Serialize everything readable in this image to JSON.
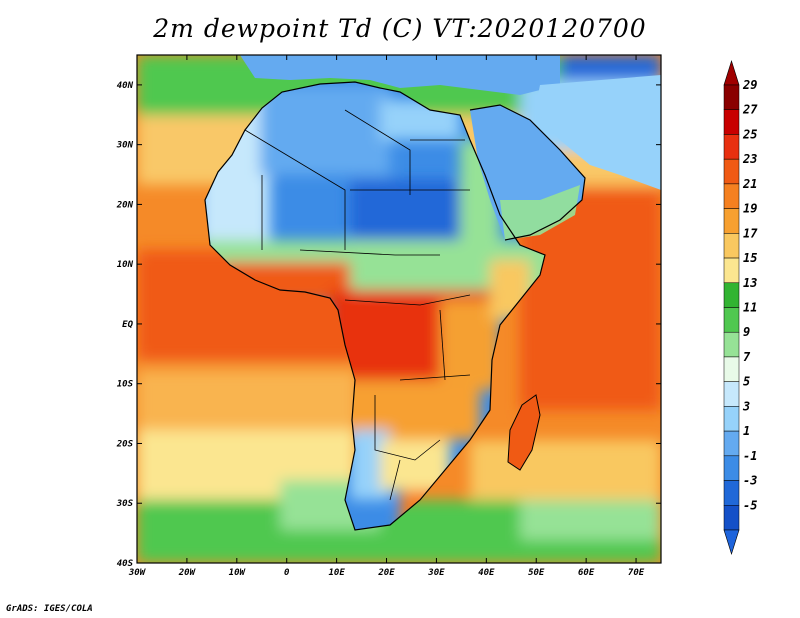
{
  "title": "2m dewpoint Td (C) VT:2020120700",
  "credit": "GrADS: IGES/COLA",
  "map": {
    "lon_ticks": [
      "30W",
      "20W",
      "10W",
      "0",
      "10E",
      "20E",
      "30E",
      "40E",
      "50E",
      "60E",
      "70E"
    ],
    "lat_ticks": [
      "40N",
      "30N",
      "20N",
      "10N",
      "EQ",
      "10S",
      "20S",
      "30S",
      "40S"
    ],
    "lon_range": [
      -30,
      75
    ],
    "lat_range": [
      -40,
      45
    ]
  },
  "legend": {
    "labels": [
      "29",
      "27",
      "25",
      "23",
      "21",
      "19",
      "17",
      "15",
      "13",
      "11",
      "9",
      "7",
      "5",
      "3",
      "1",
      "-1",
      "-3",
      "-5"
    ],
    "colors": [
      "#8a0000",
      "#c80000",
      "#e83010",
      "#f05a14",
      "#f58020",
      "#f7a030",
      "#f9c860",
      "#fbe690",
      "#32b432",
      "#50c850",
      "#96e296",
      "#e8fae8",
      "#c6e8fc",
      "#96d2fa",
      "#64aaf0",
      "#3c8ce6",
      "#2068d8",
      "#1450c8"
    ],
    "top_color": "#a00000",
    "bottom_color": "#1e64dc"
  }
}
